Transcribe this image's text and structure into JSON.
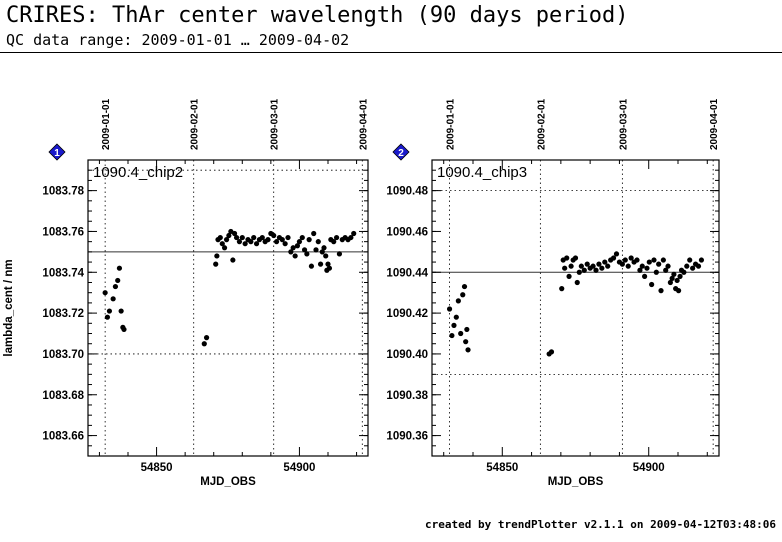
{
  "header": {
    "title": "CRIRES: ThAr center wavelength (90 days period)",
    "subtitle": "QC data range: 2009-01-01 … 2009-04-02"
  },
  "footer": {
    "text": "created by trendPlotter v2.1.1 on 2009-04-12T03:48:06"
  },
  "chart_data": [
    {
      "type": "scatter",
      "badge": "1",
      "title": "1090.4_chip2",
      "xlabel": "MJD_OBS",
      "ylabel": "lambda_cent / nm",
      "xlim": [
        54826,
        54924
      ],
      "ylim": [
        1083.65,
        1083.795
      ],
      "xticks": [
        54850,
        54900
      ],
      "yticks": [
        1083.66,
        1083.68,
        1083.7,
        1083.72,
        1083.74,
        1083.76,
        1083.78
      ],
      "ytick_decimals": 2,
      "top_dates": [
        {
          "label": "2009-01-01",
          "mjd": 54832
        },
        {
          "label": "2009-02-01",
          "mjd": 54863
        },
        {
          "label": "2009-03-01",
          "mjd": 54891
        },
        {
          "label": "2009-04-01",
          "mjd": 54922
        }
      ],
      "reference": 1083.75,
      "limits": [
        1083.7,
        1083.79
      ],
      "points": [
        {
          "x": 54832.0,
          "y": 1083.73
        },
        {
          "x": 54832.8,
          "y": 1083.718
        },
        {
          "x": 54833.5,
          "y": 1083.721
        },
        {
          "x": 54834.8,
          "y": 1083.727
        },
        {
          "x": 54835.6,
          "y": 1083.733
        },
        {
          "x": 54836.4,
          "y": 1083.736
        },
        {
          "x": 54837.0,
          "y": 1083.742
        },
        {
          "x": 54837.6,
          "y": 1083.721
        },
        {
          "x": 54838.2,
          "y": 1083.713
        },
        {
          "x": 54838.6,
          "y": 1083.712
        },
        {
          "x": 54866.7,
          "y": 1083.705
        },
        {
          "x": 54867.5,
          "y": 1083.708
        },
        {
          "x": 54870.7,
          "y": 1083.744
        },
        {
          "x": 54871.1,
          "y": 1083.748
        },
        {
          "x": 54871.5,
          "y": 1083.756
        },
        {
          "x": 54872.3,
          "y": 1083.757
        },
        {
          "x": 54873.0,
          "y": 1083.754
        },
        {
          "x": 54873.8,
          "y": 1083.752
        },
        {
          "x": 54874.5,
          "y": 1083.756
        },
        {
          "x": 54875.3,
          "y": 1083.758
        },
        {
          "x": 54876.0,
          "y": 1083.76
        },
        {
          "x": 54876.7,
          "y": 1083.746
        },
        {
          "x": 54877.3,
          "y": 1083.759
        },
        {
          "x": 54878.0,
          "y": 1083.757
        },
        {
          "x": 54879.0,
          "y": 1083.755
        },
        {
          "x": 54880.0,
          "y": 1083.757
        },
        {
          "x": 54881.0,
          "y": 1083.754
        },
        {
          "x": 54882.0,
          "y": 1083.756
        },
        {
          "x": 54883.0,
          "y": 1083.755
        },
        {
          "x": 54884.0,
          "y": 1083.757
        },
        {
          "x": 54885.0,
          "y": 1083.754
        },
        {
          "x": 54886.0,
          "y": 1083.756
        },
        {
          "x": 54887.0,
          "y": 1083.757
        },
        {
          "x": 54888.0,
          "y": 1083.755
        },
        {
          "x": 54889.0,
          "y": 1083.756
        },
        {
          "x": 54890.0,
          "y": 1083.759
        },
        {
          "x": 54891.0,
          "y": 1083.758
        },
        {
          "x": 54892.0,
          "y": 1083.755
        },
        {
          "x": 54893.0,
          "y": 1083.757
        },
        {
          "x": 54894.0,
          "y": 1083.756
        },
        {
          "x": 54895.0,
          "y": 1083.754
        },
        {
          "x": 54896.0,
          "y": 1083.757
        },
        {
          "x": 54897.0,
          "y": 1083.75
        },
        {
          "x": 54897.8,
          "y": 1083.752
        },
        {
          "x": 54898.5,
          "y": 1083.748
        },
        {
          "x": 54899.3,
          "y": 1083.753
        },
        {
          "x": 54900.0,
          "y": 1083.755
        },
        {
          "x": 54901.0,
          "y": 1083.757
        },
        {
          "x": 54901.8,
          "y": 1083.751
        },
        {
          "x": 54902.6,
          "y": 1083.749
        },
        {
          "x": 54903.4,
          "y": 1083.756
        },
        {
          "x": 54904.2,
          "y": 1083.743
        },
        {
          "x": 54905.0,
          "y": 1083.759
        },
        {
          "x": 54905.8,
          "y": 1083.751
        },
        {
          "x": 54906.6,
          "y": 1083.755
        },
        {
          "x": 54907.4,
          "y": 1083.744
        },
        {
          "x": 54908.0,
          "y": 1083.75
        },
        {
          "x": 54908.6,
          "y": 1083.752
        },
        {
          "x": 54909.2,
          "y": 1083.748
        },
        {
          "x": 54909.6,
          "y": 1083.741
        },
        {
          "x": 54910.0,
          "y": 1083.744
        },
        {
          "x": 54910.5,
          "y": 1083.742
        },
        {
          "x": 54911.0,
          "y": 1083.756
        },
        {
          "x": 54912.0,
          "y": 1083.755
        },
        {
          "x": 54913.0,
          "y": 1083.757
        },
        {
          "x": 54914.0,
          "y": 1083.749
        },
        {
          "x": 54915.0,
          "y": 1083.756
        },
        {
          "x": 54916.0,
          "y": 1083.757
        },
        {
          "x": 54917.0,
          "y": 1083.756
        },
        {
          "x": 54918.0,
          "y": 1083.757
        },
        {
          "x": 54919.0,
          "y": 1083.759
        }
      ]
    },
    {
      "type": "scatter",
      "badge": "2",
      "title": "1090.4_chip3",
      "xlabel": "MJD_OBS",
      "ylabel": "",
      "xlim": [
        54826,
        54924
      ],
      "ylim": [
        1090.35,
        1090.495
      ],
      "xticks": [
        54850,
        54900
      ],
      "yticks": [
        1090.36,
        1090.38,
        1090.4,
        1090.42,
        1090.44,
        1090.46,
        1090.48
      ],
      "ytick_decimals": 2,
      "top_dates": [
        {
          "label": "2009-01-01",
          "mjd": 54832
        },
        {
          "label": "2009-02-01",
          "mjd": 54863
        },
        {
          "label": "2009-03-01",
          "mjd": 54891
        },
        {
          "label": "2009-04-01",
          "mjd": 54922
        }
      ],
      "reference": 1090.44,
      "limits": [
        1090.39,
        1090.48
      ],
      "points": [
        {
          "x": 54832.0,
          "y": 1090.422
        },
        {
          "x": 54832.8,
          "y": 1090.409
        },
        {
          "x": 54833.5,
          "y": 1090.414
        },
        {
          "x": 54834.3,
          "y": 1090.418
        },
        {
          "x": 54835.0,
          "y": 1090.426
        },
        {
          "x": 54835.8,
          "y": 1090.41
        },
        {
          "x": 54836.5,
          "y": 1090.429
        },
        {
          "x": 54837.1,
          "y": 1090.433
        },
        {
          "x": 54837.5,
          "y": 1090.406
        },
        {
          "x": 54837.9,
          "y": 1090.412
        },
        {
          "x": 54838.3,
          "y": 1090.402
        },
        {
          "x": 54866.0,
          "y": 1090.4
        },
        {
          "x": 54866.8,
          "y": 1090.401
        },
        {
          "x": 54870.3,
          "y": 1090.432
        },
        {
          "x": 54870.8,
          "y": 1090.446
        },
        {
          "x": 54871.3,
          "y": 1090.442
        },
        {
          "x": 54872.0,
          "y": 1090.447
        },
        {
          "x": 54872.8,
          "y": 1090.438
        },
        {
          "x": 54873.5,
          "y": 1090.443
        },
        {
          "x": 54874.2,
          "y": 1090.446
        },
        {
          "x": 54875.0,
          "y": 1090.447
        },
        {
          "x": 54875.6,
          "y": 1090.435
        },
        {
          "x": 54876.3,
          "y": 1090.44
        },
        {
          "x": 54877.0,
          "y": 1090.443
        },
        {
          "x": 54878.0,
          "y": 1090.441
        },
        {
          "x": 54879.0,
          "y": 1090.444
        },
        {
          "x": 54880.0,
          "y": 1090.442
        },
        {
          "x": 54881.0,
          "y": 1090.443
        },
        {
          "x": 54882.0,
          "y": 1090.441
        },
        {
          "x": 54883.0,
          "y": 1090.444
        },
        {
          "x": 54884.0,
          "y": 1090.442
        },
        {
          "x": 54885.0,
          "y": 1090.445
        },
        {
          "x": 54886.0,
          "y": 1090.443
        },
        {
          "x": 54887.0,
          "y": 1090.446
        },
        {
          "x": 54888.0,
          "y": 1090.447
        },
        {
          "x": 54889.0,
          "y": 1090.449
        },
        {
          "x": 54890.0,
          "y": 1090.445
        },
        {
          "x": 54891.0,
          "y": 1090.444
        },
        {
          "x": 54892.0,
          "y": 1090.446
        },
        {
          "x": 54893.0,
          "y": 1090.443
        },
        {
          "x": 54894.0,
          "y": 1090.447
        },
        {
          "x": 54895.0,
          "y": 1090.445
        },
        {
          "x": 54896.0,
          "y": 1090.446
        },
        {
          "x": 54897.0,
          "y": 1090.441
        },
        {
          "x": 54897.8,
          "y": 1090.443
        },
        {
          "x": 54898.6,
          "y": 1090.438
        },
        {
          "x": 54899.4,
          "y": 1090.442
        },
        {
          "x": 54900.2,
          "y": 1090.445
        },
        {
          "x": 54901.0,
          "y": 1090.434
        },
        {
          "x": 54901.8,
          "y": 1090.446
        },
        {
          "x": 54902.6,
          "y": 1090.44
        },
        {
          "x": 54903.4,
          "y": 1090.444
        },
        {
          "x": 54904.2,
          "y": 1090.431
        },
        {
          "x": 54905.0,
          "y": 1090.446
        },
        {
          "x": 54905.8,
          "y": 1090.441
        },
        {
          "x": 54906.6,
          "y": 1090.443
        },
        {
          "x": 54907.4,
          "y": 1090.435
        },
        {
          "x": 54908.0,
          "y": 1090.437
        },
        {
          "x": 54908.6,
          "y": 1090.439
        },
        {
          "x": 54909.2,
          "y": 1090.432
        },
        {
          "x": 54909.7,
          "y": 1090.436
        },
        {
          "x": 54910.2,
          "y": 1090.431
        },
        {
          "x": 54910.7,
          "y": 1090.438
        },
        {
          "x": 54911.2,
          "y": 1090.441
        },
        {
          "x": 54912.0,
          "y": 1090.44
        },
        {
          "x": 54913.0,
          "y": 1090.443
        },
        {
          "x": 54914.0,
          "y": 1090.446
        },
        {
          "x": 54915.0,
          "y": 1090.442
        },
        {
          "x": 54916.0,
          "y": 1090.444
        },
        {
          "x": 54917.0,
          "y": 1090.443
        },
        {
          "x": 54918.0,
          "y": 1090.446
        }
      ]
    }
  ]
}
